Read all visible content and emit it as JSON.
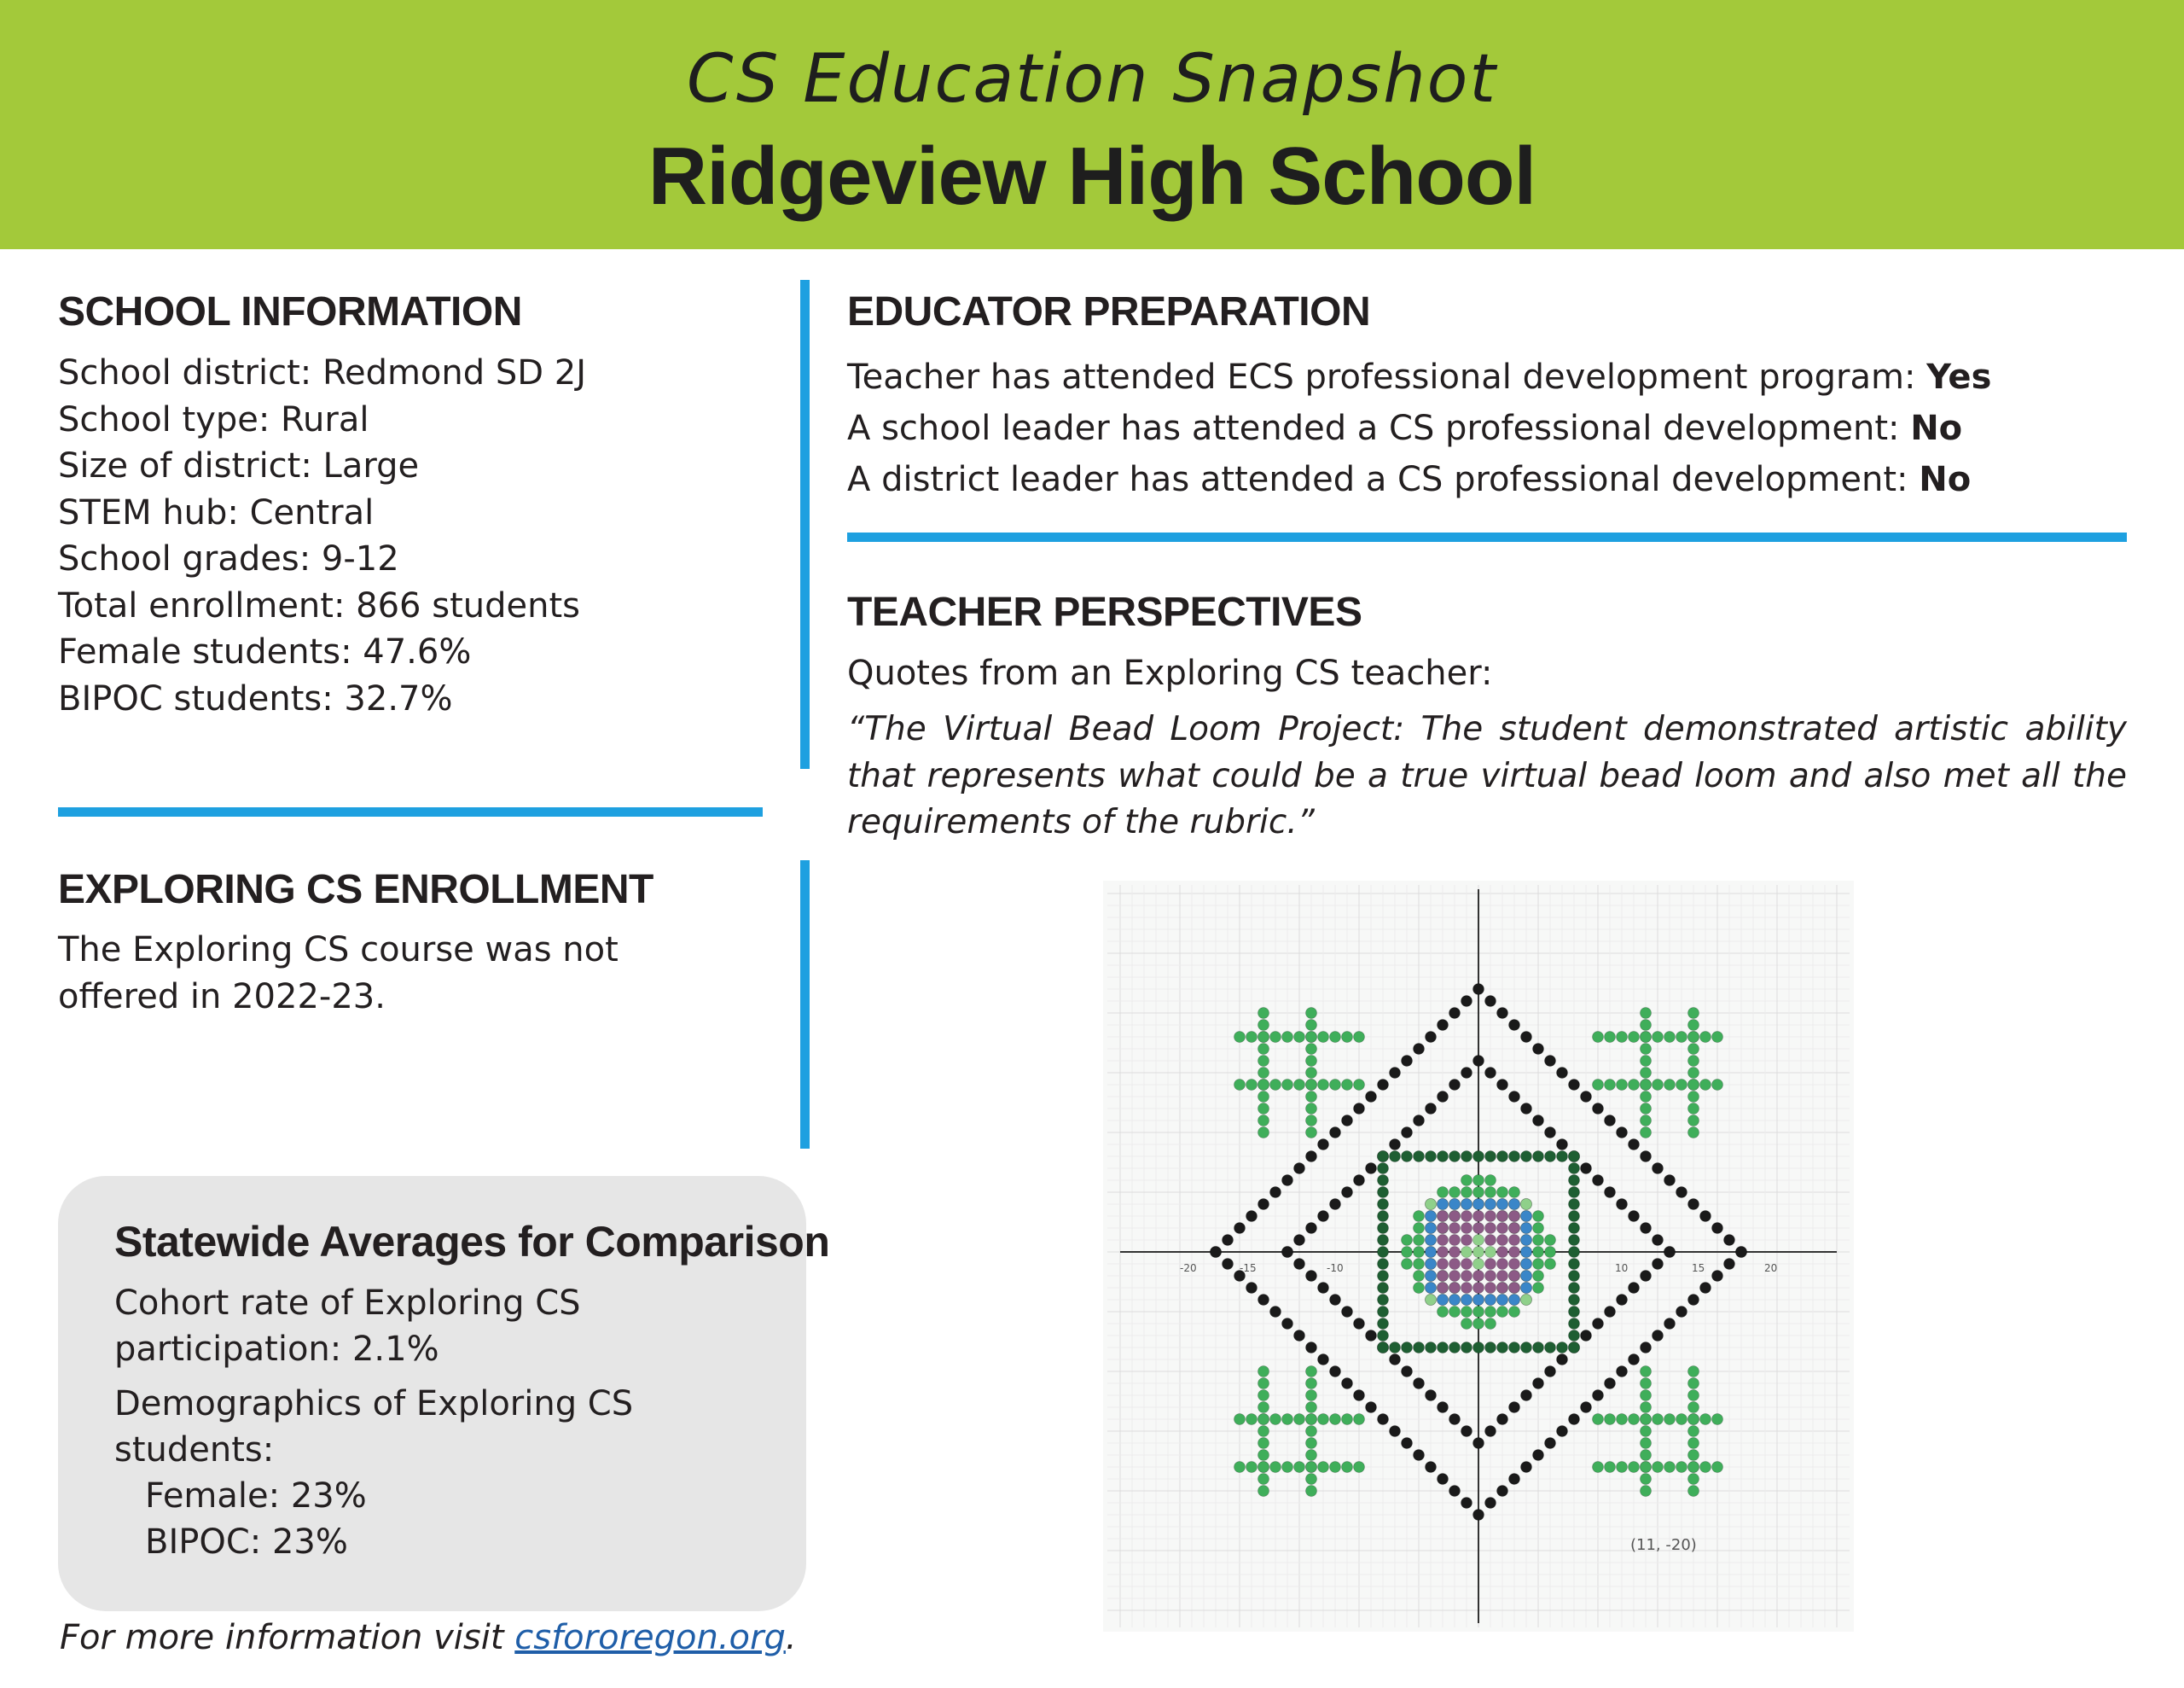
{
  "header": {
    "subtitle": "CS Education Snapshot",
    "title": "Ridgeview High School",
    "background_color": "#a3c93a"
  },
  "school_info": {
    "heading": "SCHOOL INFORMATION",
    "lines": [
      "School district: Redmond SD 2J",
      "School type: Rural",
      "Size of district: Large",
      "STEM hub: Central",
      "School grades: 9-12",
      "Total enrollment: 866 students",
      "Female students: 47.6%",
      "BIPOC students: 32.7%"
    ]
  },
  "enrollment": {
    "heading": "EXPLORING CS ENROLLMENT",
    "lines": [
      "The Exploring CS course was not",
      "offered in 2022-23."
    ]
  },
  "educator_prep": {
    "heading": "EDUCATOR PREPARATION",
    "items": [
      {
        "label": "Teacher has attended ECS professional development program:",
        "value": "Yes"
      },
      {
        "label": "A school leader has attended a CS professional development:",
        "value": "No"
      },
      {
        "label": "A district leader has attended a CS professional development:",
        "value": "No"
      }
    ]
  },
  "teacher_perspectives": {
    "heading": "TEACHER PERSPECTIVES",
    "intro": "Quotes from an Exploring CS teacher:",
    "quote": "“The Virtual Bead Loom Project: The student demonstrated artistic ability that represents what could be a true virtual bead loom and also met all the requirements of the rubric.”"
  },
  "artwork": {
    "description_icon": "bead-loom-graph-icon",
    "axis_ticks": [
      "-20",
      "-15",
      "-10",
      "10",
      "15",
      "20"
    ],
    "coordinate_label": "(11, -20)",
    "colors": {
      "black": "#1a1a1a",
      "dark_green": "#1e5e32",
      "green": "#3fae5a",
      "light_green": "#8fd08a",
      "purple": "#8c5a86",
      "blue": "#3a86c8"
    }
  },
  "statewide": {
    "title": "Statewide Averages for Comparison",
    "participation": [
      "Cohort rate of Exploring CS",
      "participation: 2.1%"
    ],
    "demographics": [
      "Demographics of Exploring CS",
      "students:"
    ],
    "female": "Female: 23%",
    "bipoc": "BIPOC: 23%"
  },
  "footer": {
    "prefix": "For more information visit ",
    "link": "csfororegon.org",
    "suffix": "."
  },
  "accent_color": "#1ea0e0"
}
